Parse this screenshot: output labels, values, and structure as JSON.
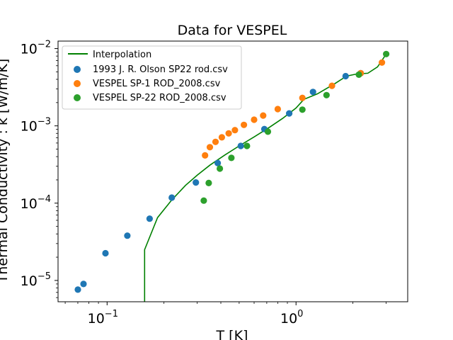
{
  "chart_data": {
    "type": "scatter",
    "title": "Data for VESPEL",
    "xlabel": "T [K]",
    "ylabel": "Thermal Conductivity : k [W/m/K]",
    "xscale": "log",
    "yscale": "log",
    "xlim": [
      0.055,
      3.9
    ],
    "ylim": [
      5.3e-06,
      0.0125
    ],
    "grid": false,
    "legend_position": "top-left",
    "x_ticks": [
      {
        "value": 0.1,
        "base": "10",
        "exp": "−1"
      },
      {
        "value": 1,
        "base": "10",
        "exp": "0"
      }
    ],
    "y_ticks": [
      {
        "value": 1e-05,
        "base": "10",
        "exp": "−5"
      },
      {
        "value": 0.0001,
        "base": "10",
        "exp": "−4"
      },
      {
        "value": 0.001,
        "base": "10",
        "exp": "−3"
      },
      {
        "value": 0.01,
        "base": "10",
        "exp": "−2"
      }
    ],
    "line": {
      "name": "Interpolation",
      "color": "#008000",
      "x": [
        0.158,
        0.158,
        0.185,
        0.22,
        0.26,
        0.3,
        0.35,
        0.42,
        0.5,
        0.6,
        0.72,
        0.85,
        1.0,
        1.1,
        1.3,
        1.6,
        1.85,
        2.1,
        2.4,
        2.7,
        3.0
      ],
      "y": [
        5.3e-06,
        2.5e-05,
        6.5e-05,
        0.00011,
        0.00017,
        0.00023,
        0.00031,
        0.00042,
        0.00055,
        0.00072,
        0.00095,
        0.00125,
        0.0017,
        0.0022,
        0.0026,
        0.0035,
        0.0044,
        0.0047,
        0.0048,
        0.0058,
        0.0085
      ]
    },
    "series": [
      {
        "name": "1993 J. R. Olson SP22 rod.csv",
        "color": "#1f77b4",
        "x": [
          0.07,
          0.075,
          0.098,
          0.128,
          0.168,
          0.22,
          0.295,
          0.385,
          0.51,
          0.68,
          0.92,
          1.23,
          1.83,
          2.2
        ],
        "y": [
          7.6e-06,
          9e-06,
          2.25e-05,
          3.8e-05,
          6.3e-05,
          0.000118,
          0.000185,
          0.00033,
          0.00055,
          0.00091,
          0.00145,
          0.00275,
          0.0044,
          0.0048
        ]
      },
      {
        "name": "VESPEL SP-1 ROD_2008.csv",
        "color": "#ff7f0e",
        "x": [
          0.33,
          0.35,
          0.375,
          0.405,
          0.44,
          0.475,
          0.53,
          0.6,
          0.67,
          0.8,
          1.08,
          1.55,
          2.2,
          2.85
        ],
        "y": [
          0.000415,
          0.00053,
          0.00062,
          0.00071,
          0.0008,
          0.00088,
          0.00103,
          0.0012,
          0.00136,
          0.00165,
          0.0023,
          0.0033,
          0.0048,
          0.0066
        ]
      },
      {
        "name": "VESPEL SP-22 ROD_2008.csv",
        "color": "#2ca02c",
        "x": [
          0.325,
          0.345,
          0.395,
          0.455,
          0.55,
          0.71,
          1.08,
          1.45,
          2.15,
          3.0
        ],
        "y": [
          0.000108,
          0.000182,
          0.00028,
          0.000385,
          0.00055,
          0.00084,
          0.00162,
          0.0025,
          0.0046,
          0.0085
        ]
      }
    ]
  }
}
